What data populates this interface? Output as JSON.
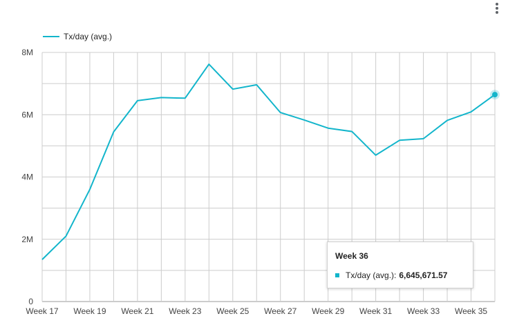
{
  "menu": {
    "icon": "more-vert-icon"
  },
  "tooltip": {
    "title": "Week 36",
    "series_label": "Tx/day (avg.):",
    "value": "6,645,671.57"
  },
  "colors": {
    "series": "#12b5cb",
    "grid": "#cccccc",
    "axis_text": "#444444"
  },
  "chart_data": {
    "type": "line",
    "legend_position": "top-left",
    "grid": true,
    "x": [
      "Week 17",
      "Week 18",
      "Week 19",
      "Week 20",
      "Week 21",
      "Week 22",
      "Week 23",
      "Week 24",
      "Week 25",
      "Week 26",
      "Week 27",
      "Week 28",
      "Week 29",
      "Week 30",
      "Week 31",
      "Week 32",
      "Week 33",
      "Week 34",
      "Week 35",
      "Week 36"
    ],
    "x_tick_labels": [
      "Week 17",
      "Week 19",
      "Week 21",
      "Week 23",
      "Week 25",
      "Week 27",
      "Week 29",
      "Week 31",
      "Week 33",
      "Week 35"
    ],
    "ylim": [
      0,
      8000000
    ],
    "y_ticks": [
      0,
      2000000,
      4000000,
      6000000,
      8000000
    ],
    "y_tick_labels": [
      "0",
      "2M",
      "4M",
      "6M",
      "8M"
    ],
    "series": [
      {
        "name": "Tx/day (avg.)",
        "values": [
          1350000,
          2100000,
          3600000,
          5450000,
          6450000,
          6550000,
          6530000,
          7620000,
          6820000,
          6960000,
          6070000,
          5830000,
          5570000,
          5460000,
          4700000,
          5180000,
          5230000,
          5820000,
          6090000,
          6645671.57
        ]
      }
    ]
  }
}
